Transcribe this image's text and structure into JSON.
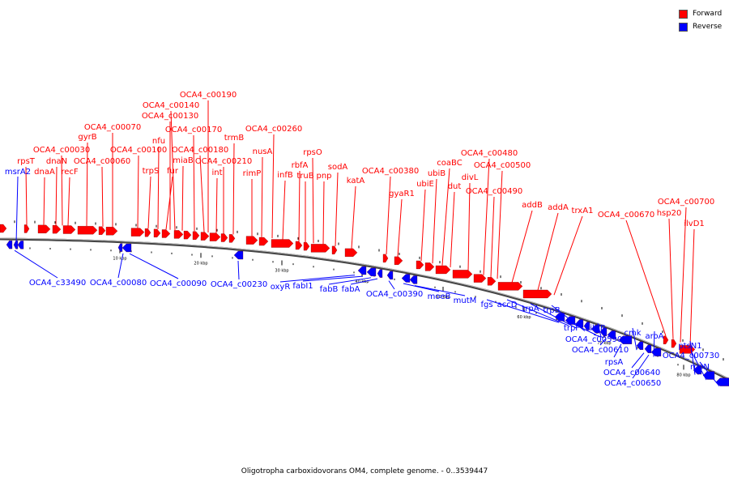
{
  "legend": {
    "forward": {
      "label": "Forward",
      "color": "#ff0000"
    },
    "reverse": {
      "label": "Reverse",
      "color": "#0000ff"
    }
  },
  "caption": "Oligotropha carboxidovorans OM4, complete genome. - 0..3539447",
  "scale_ticks": [
    "10 kbp",
    "20 kbp",
    "30 kbp",
    "40 kbp",
    "50 kbp",
    "60 kbp",
    "70 kbp",
    "80 kbp"
  ],
  "forward_genes": [
    "rpsT",
    "dnaA",
    "dnaN",
    "OCA4_c00030",
    "recF",
    "gyrB",
    "OCA4_c00060",
    "OCA4_c00070",
    "OCA4_c00100",
    "trpS",
    "nfu",
    "fur",
    "OCA4_c00130",
    "OCA4_c00140",
    "miaB",
    "OCA4_c00170",
    "OCA4_c00180",
    "OCA4_c00190",
    "int",
    "OCA4_c00210",
    "trmB",
    "rimP",
    "nusA",
    "infB",
    "OCA4_c00260",
    "rbfA",
    "truB",
    "rpsO",
    "pnp",
    "sodA",
    "katA",
    "gyaR1",
    "OCA4_c00380",
    "ubiE",
    "ubiB",
    "coaBC",
    "dut",
    "divL",
    "OCA4_c00480",
    "OCA4_c00490",
    "OCA4_c00500",
    "addB",
    "addA",
    "trxA1",
    "OCA4_c00670",
    "hsp20",
    "OCA4_c00700",
    "ilvD1"
  ],
  "reverse_genes": [
    "msrA2",
    "OCA4_c33490",
    "OCA4_c00080",
    "OCA4_c00090",
    "OCA4_c00230",
    "oxyR",
    "fabI1",
    "fabB",
    "fabA",
    "OCA4_c00390",
    "moeB",
    "mutM",
    "fgs",
    "accD",
    "trpA",
    "trpB",
    "trpF",
    "ihfB",
    "OCA4_c00590",
    "OCA4_c00610",
    "rpsA",
    "cmk",
    "OCA4_c00640",
    "OCA4_c00650",
    "aroA",
    "ptsN1",
    "OCA4_c00730",
    "rpoN"
  ]
}
